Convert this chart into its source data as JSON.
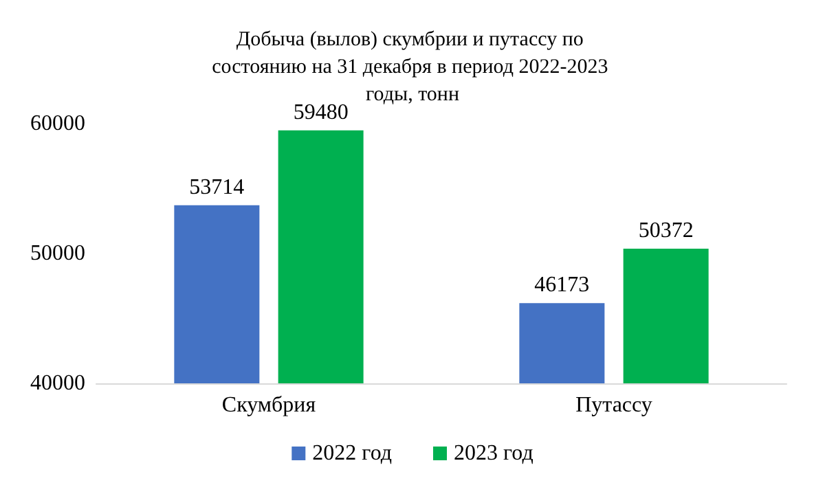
{
  "chart_data": {
    "type": "bar",
    "title": "Добыча (вылов) скумбрии и путассу по состоянию на 31 декабря в период 2022-2023 годы, тонн",
    "categories": [
      "Скумбрия",
      "Путассу"
    ],
    "series": [
      {
        "name": "2022 год",
        "color": "#4472c4",
        "values": [
          53714,
          46173
        ]
      },
      {
        "name": "2023 год",
        "color": "#00b050",
        "values": [
          59480,
          50372
        ]
      }
    ],
    "ylim": [
      40000,
      60000
    ],
    "yticks": [
      40000,
      50000,
      60000
    ],
    "grid": false,
    "legend": "bottom",
    "data_labels": true
  }
}
